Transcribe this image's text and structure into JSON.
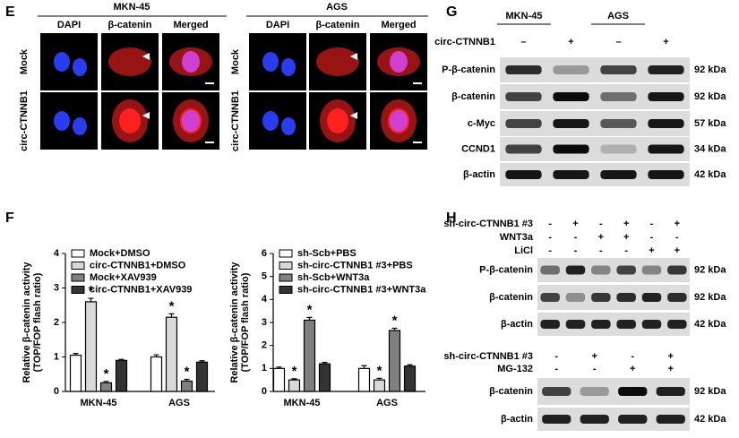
{
  "panel_e": {
    "label": "E",
    "groups": [
      {
        "title": "MKN-45",
        "columns": [
          "DAPI",
          "β-catenin",
          "Merged"
        ],
        "rows": [
          "Mock",
          "circ-CTNNB1"
        ]
      },
      {
        "title": "AGS",
        "columns": [
          "DAPI",
          "β-catenin",
          "Merged"
        ],
        "rows": [
          "Mock",
          "circ-CTNNB1"
        ]
      }
    ]
  },
  "panel_f": {
    "label": "F"
  },
  "chart_data": [
    {
      "type": "bar",
      "ylabel": [
        "Relative β-catenin activity",
        "(TOP/FOP flash ratio)"
      ],
      "categories": [
        "MKN-45",
        "AGS"
      ],
      "series": [
        {
          "name": "Mock+DMSO",
          "color": "#ffffff",
          "values": [
            1.05,
            1.0
          ],
          "errors": [
            0.05,
            0.06
          ]
        },
        {
          "name": "circ-CTNNB1+DMSO",
          "color": "#d9d9d9",
          "values": [
            2.6,
            2.15
          ],
          "errors": [
            0.1,
            0.1
          ]
        },
        {
          "name": "Mock+XAV939",
          "color": "#808080",
          "values": [
            0.25,
            0.3
          ],
          "errors": [
            0.04,
            0.05
          ]
        },
        {
          "name": "circ-CTNNB1+XAV939",
          "color": "#333333",
          "values": [
            0.9,
            0.85
          ],
          "errors": [
            0.03,
            0.04
          ]
        }
      ],
      "ylim": [
        0,
        4
      ],
      "yticks": [
        0,
        1,
        2,
        3,
        4
      ],
      "annotations": [
        {
          "text": "*",
          "series": 1,
          "category": 0
        },
        {
          "text": "*",
          "series": 2,
          "category": 0
        },
        {
          "text": "*",
          "series": 1,
          "category": 1
        },
        {
          "text": "*",
          "series": 2,
          "category": 1
        }
      ]
    },
    {
      "type": "bar",
      "ylabel": [
        "Relative β-catenin activity",
        "(TOP/FOP flash ratio)"
      ],
      "categories": [
        "MKN-45",
        "AGS"
      ],
      "series": [
        {
          "name": "sh-Scb+PBS",
          "color": "#ffffff",
          "values": [
            1.0,
            1.0
          ],
          "errors": [
            0.06,
            0.12
          ]
        },
        {
          "name": "sh-circ-CTNNB1 #3+PBS",
          "color": "#d9d9d9",
          "values": [
            0.5,
            0.5
          ],
          "errors": [
            0.05,
            0.07
          ]
        },
        {
          "name": "sh-Scb+WNT3a",
          "color": "#808080",
          "values": [
            3.1,
            2.65
          ],
          "errors": [
            0.12,
            0.1
          ]
        },
        {
          "name": "sh-circ-CTNNB1 #3+WNT3a",
          "color": "#333333",
          "values": [
            1.2,
            1.1
          ],
          "errors": [
            0.06,
            0.06
          ]
        }
      ],
      "ylim": [
        0,
        6
      ],
      "yticks": [
        0,
        1,
        2,
        3,
        4,
        5,
        6
      ],
      "annotations": [
        {
          "text": "*",
          "series": 1,
          "category": 0
        },
        {
          "text": "*",
          "series": 2,
          "category": 0
        },
        {
          "text": "*",
          "series": 1,
          "category": 1
        },
        {
          "text": "*",
          "series": 2,
          "category": 1
        }
      ]
    }
  ],
  "panel_g": {
    "label": "G",
    "columns": [
      "MKN-45",
      "AGS"
    ],
    "conditions": [
      {
        "name": "circ-CTNNB1",
        "signs": [
          "–",
          "+",
          "–",
          "+"
        ]
      }
    ],
    "blots": [
      {
        "name": "P-β-catenin",
        "size": "92 kDa"
      },
      {
        "name": "β-catenin",
        "size": "92 kDa"
      },
      {
        "name": "c-Myc",
        "size": "57 kDa"
      },
      {
        "name": "CCND1",
        "size": "34 kDa"
      },
      {
        "name": "β-actin",
        "size": "42 kDa"
      }
    ]
  },
  "panel_h": {
    "label": "H",
    "blocks": [
      {
        "conditions": [
          {
            "name": "sh-circ-CTNNB1 #3",
            "signs": [
              "-",
              "+",
              "-",
              "+",
              "-",
              "+"
            ]
          },
          {
            "name": "WNT3a",
            "signs": [
              "-",
              "-",
              "+",
              "+",
              "-",
              "-"
            ]
          },
          {
            "name": "LiCl",
            "signs": [
              "-",
              "-",
              "-",
              "-",
              "+",
              "+"
            ]
          }
        ],
        "blots": [
          {
            "name": "P-β-catenin",
            "size": "92 kDa"
          },
          {
            "name": "β-catenin",
            "size": "92 kDa"
          },
          {
            "name": "β-actin",
            "size": "42 kDa"
          }
        ]
      },
      {
        "conditions": [
          {
            "name": "sh-circ-CTNNB1 #3",
            "signs": [
              "-",
              "+",
              "-",
              "+"
            ]
          },
          {
            "name": "MG-132",
            "signs": [
              "-",
              "-",
              "+",
              "+"
            ]
          }
        ],
        "blots": [
          {
            "name": "β-catenin",
            "size": "92 kDa"
          },
          {
            "name": "β-actin",
            "size": "42 kDa"
          }
        ]
      }
    ]
  }
}
